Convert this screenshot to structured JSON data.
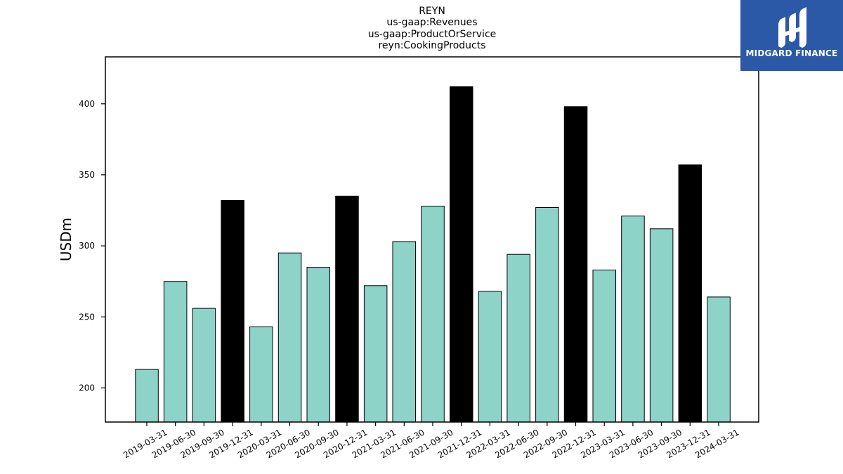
{
  "chart_data": {
    "type": "bar",
    "title_lines": [
      "REYN",
      "us-gaap:Revenues",
      "us-gaap:ProductOrService",
      "reyn:CookingProducts"
    ],
    "xlabel": "",
    "ylabel": "USDm",
    "ylim": [
      176,
      433
    ],
    "yticks": [
      200,
      250,
      300,
      350,
      400
    ],
    "grid": false,
    "categories": [
      "2019-03-31",
      "2019-06-30",
      "2019-09-30",
      "2019-12-31",
      "2020-03-31",
      "2020-06-30",
      "2020-09-30",
      "2020-12-31",
      "2021-03-31",
      "2021-06-30",
      "2021-09-30",
      "2021-12-31",
      "2022-03-31",
      "2022-06-30",
      "2022-09-30",
      "2022-12-31",
      "2023-03-31",
      "2023-06-30",
      "2023-09-30",
      "2023-12-31",
      "2024-03-31"
    ],
    "values": [
      213,
      275,
      256,
      332,
      243,
      295,
      285,
      335,
      272,
      303,
      328,
      412,
      268,
      294,
      327,
      398,
      283,
      321,
      312,
      357,
      264
    ],
    "bar_colors": {
      "quarter": "#8dd3c7",
      "year_end": "#000000",
      "edge": "#000000"
    }
  },
  "logo": {
    "text": "MIDGARD FINANCE",
    "background": "#2b59a8"
  }
}
